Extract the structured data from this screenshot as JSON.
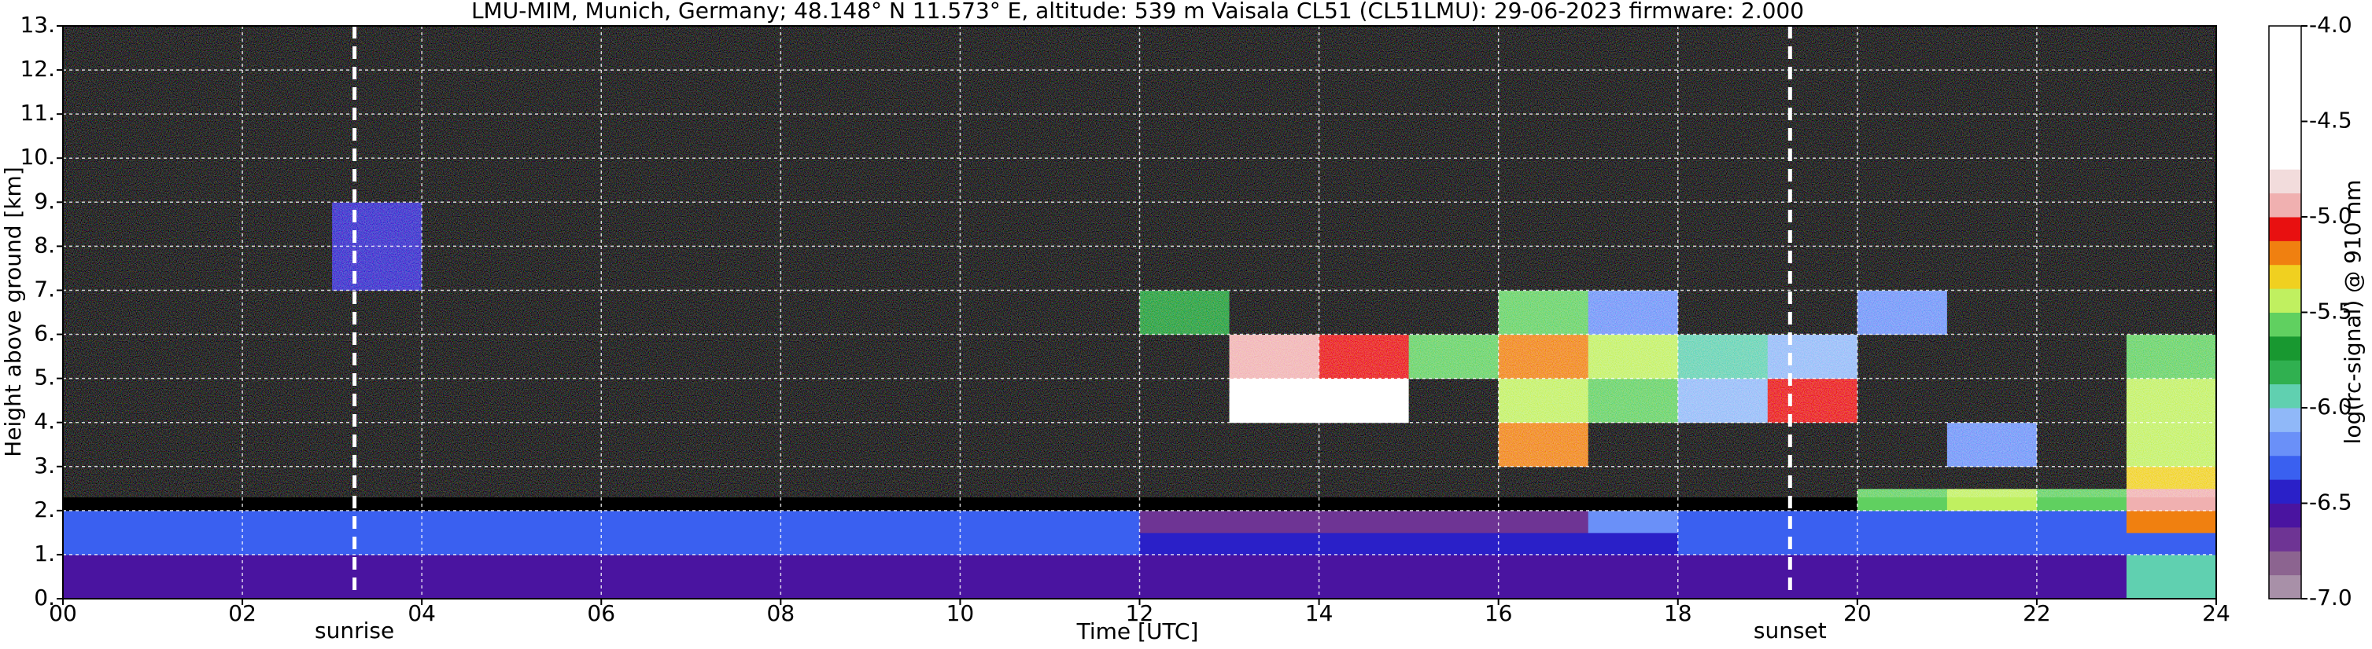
{
  "chart_data": {
    "type": "heatmap",
    "title": "LMU-MIM, Munich, Germany; 48.148° N 11.573° E, altitude: 539 m    Vaisala CL51 (CL51LMU): 29-06-2023    firmware: 2.000",
    "x_label": "Time [UTC]",
    "y_label": "Height above ground [km]",
    "colorbar_label": "log(rc-signal) @ 910 nm",
    "xlim": [
      0,
      24
    ],
    "ylim": [
      0,
      13
    ],
    "zlim": [
      -7,
      -4
    ],
    "xticks": [
      {
        "value": 0,
        "label": "00"
      },
      {
        "value": 2,
        "label": "02"
      },
      {
        "value": 4,
        "label": "04"
      },
      {
        "value": 6,
        "label": "06"
      },
      {
        "value": 8,
        "label": "08"
      },
      10,
      12,
      14,
      16,
      18,
      20,
      22,
      24
    ],
    "yticks": [
      {
        "value": 0,
        "label": "0."
      },
      {
        "value": 1,
        "label": "1."
      },
      {
        "value": 2,
        "label": "2."
      },
      {
        "value": 3,
        "label": "3."
      },
      {
        "value": 4,
        "label": "4."
      },
      {
        "value": 5,
        "label": "5."
      },
      {
        "value": 6,
        "label": "6."
      },
      {
        "value": 7,
        "label": "7."
      },
      {
        "value": 8,
        "label": "8."
      },
      {
        "value": 9,
        "label": "9."
      },
      {
        "value": 10,
        "label": "10."
      },
      {
        "value": 11,
        "label": "11."
      },
      {
        "value": 12,
        "label": "12."
      },
      {
        "value": 13,
        "label": "13."
      }
    ],
    "zticks": [
      {
        "value": -4,
        "label": "-4.0"
      },
      {
        "value": -4.5,
        "label": "-4.5"
      },
      {
        "value": -5,
        "label": "-5.0"
      },
      {
        "value": -5.5,
        "label": "-5.5"
      },
      {
        "value": -6,
        "label": "-6.0"
      },
      {
        "value": -6.5,
        "label": "-6.5"
      },
      {
        "value": -7,
        "label": "-7.0"
      }
    ],
    "grid": true,
    "colors": [
      "#a890a8",
      "#8c6490",
      "#6e3494",
      "#4a14a0",
      "#2a20c8",
      "#3a60f0",
      "#6a90f8",
      "#90b8f8",
      "#60d0b0",
      "#30b050",
      "#189830",
      "#60d060",
      "#c0f060",
      "#f0d020",
      "#f08010",
      "#e81010",
      "#f0b0b0",
      "#f2dcdc",
      "#ffffff",
      "#ffffff",
      "#ffffff",
      "#ffffff",
      "#ffffff",
      "#ffffff"
    ],
    "under_color": "#000000",
    "xbins": [
      0,
      1,
      2,
      3,
      4,
      5,
      6,
      7,
      8,
      9,
      10,
      11,
      12,
      13,
      14,
      15,
      16,
      17,
      18,
      19,
      20,
      21,
      22,
      23,
      24
    ],
    "ybins": [
      0,
      0.5,
      1,
      1.5,
      2,
      2.5,
      3,
      4,
      5,
      6,
      7,
      9,
      13
    ],
    "z": [
      [
        -6.55,
        -6.55,
        -6.55,
        -6.55,
        -6.55,
        -6.55,
        -6.55,
        -6.55,
        -6.55,
        -6.55,
        -6.55,
        -6.55,
        -6.55,
        -6.55,
        -6.55,
        -6.55,
        -6.55,
        -6.55,
        -6.55,
        -6.55,
        -6.55,
        -6.55,
        -6.55,
        -6.0
      ],
      [
        -6.6,
        -6.6,
        -6.6,
        -6.6,
        -6.6,
        -6.6,
        -6.6,
        -6.6,
        -6.6,
        -6.6,
        -6.6,
        -6.6,
        -6.6,
        -6.6,
        -6.6,
        -6.6,
        -6.6,
        -6.6,
        -6.6,
        -6.6,
        -6.6,
        -6.6,
        -6.6,
        -6.0
      ],
      [
        -6.35,
        -6.35,
        -6.35,
        -6.35,
        -6.35,
        -6.35,
        -6.35,
        -6.35,
        -6.35,
        -6.35,
        -6.35,
        -6.35,
        -6.4,
        -6.4,
        -6.4,
        -6.4,
        -6.4,
        -6.4,
        -6.3,
        -6.3,
        -6.3,
        -6.3,
        -6.3,
        -6.3
      ],
      [
        -6.3,
        -6.3,
        -6.3,
        -6.3,
        -6.3,
        -6.3,
        -6.3,
        -6.3,
        -6.3,
        -6.3,
        -6.3,
        -6.3,
        -6.7,
        -6.7,
        -6.7,
        -6.7,
        -6.7,
        -6.2,
        -6.3,
        -6.3,
        -6.35,
        -6.35,
        -6.35,
        -5.2
      ],
      [
        -7.2,
        -7.2,
        -7.2,
        -7.2,
        -7.2,
        -7.2,
        -7.2,
        -7.2,
        -7.2,
        -7.2,
        -7.2,
        -7.2,
        -7.2,
        -7.2,
        -7.2,
        -7.2,
        -7.2,
        -7.2,
        -7.2,
        -7.2,
        -5.6,
        -5.5,
        -5.6,
        -5.0
      ],
      [
        -7.2,
        -7.2,
        -7.2,
        -7.2,
        -7.2,
        -7.2,
        -7.2,
        -7.2,
        -7.2,
        -7.2,
        -7.2,
        -7.2,
        -7.2,
        -7.2,
        -7.2,
        -7.2,
        -7.2,
        -7.2,
        -7.2,
        -7.2,
        -7.2,
        -7.2,
        -7.2,
        -5.3
      ],
      [
        -7.2,
        -7.2,
        -7.2,
        -7.2,
        -7.2,
        -7.2,
        -7.2,
        -7.2,
        -7.2,
        -7.2,
        -7.2,
        -7.2,
        -7.2,
        -7.2,
        -7.2,
        -7.2,
        -5.2,
        -7.2,
        -7.2,
        -7.2,
        -7.2,
        -6.2,
        -7.2,
        -5.4
      ],
      [
        -7.2,
        -7.2,
        -7.2,
        -7.2,
        -7.2,
        -7.2,
        -7.2,
        -7.2,
        -7.2,
        -7.2,
        -7.2,
        -7.2,
        -7.2,
        -4.5,
        -4.7,
        -7.2,
        -5.4,
        -5.6,
        -6.1,
        -5.1,
        -7.2,
        -7.2,
        -7.2,
        -5.5
      ],
      [
        -7.2,
        -7.2,
        -7.2,
        -7.2,
        -7.2,
        -7.2,
        -7.2,
        -7.2,
        -7.2,
        -7.2,
        -7.2,
        -7.2,
        -7.2,
        -4.9,
        -5.1,
        -5.6,
        -5.2,
        -5.5,
        -6.0,
        -6.1,
        -7.2,
        -7.2,
        -7.2,
        -5.6
      ],
      [
        -7.2,
        -7.2,
        -7.2,
        -7.2,
        -7.2,
        -7.2,
        -7.2,
        -7.2,
        -7.2,
        -7.2,
        -7.2,
        -7.2,
        -5.7,
        -7.2,
        -7.2,
        -7.2,
        -5.6,
        -6.2,
        -7.2,
        -7.2,
        -6.2,
        -7.2,
        -7.2,
        -7.2
      ],
      [
        -7.2,
        -7.2,
        -7.2,
        -6.4,
        -7.2,
        -7.2,
        -7.2,
        -7.2,
        -7.2,
        -7.2,
        -7.2,
        -7.2,
        -7.2,
        -7.2,
        -7.2,
        -7.2,
        -7.2,
        -7.2,
        -7.2,
        -7.2,
        -7.2,
        -7.2,
        -7.2,
        -7.2
      ],
      [
        -7.2,
        -7.2,
        -7.2,
        -7.2,
        -7.2,
        -7.2,
        -7.2,
        -7.2,
        -7.2,
        -7.2,
        -7.2,
        -7.2,
        -7.2,
        -7.2,
        -7.2,
        -7.2,
        -7.2,
        -7.2,
        -7.2,
        -7.2,
        -7.2,
        -7.2,
        -7.2,
        -7.2
      ]
    ],
    "annotations": [
      {
        "x": 3.25,
        "text": "sunrise"
      },
      {
        "x": 19.25,
        "text": "sunset"
      }
    ]
  }
}
